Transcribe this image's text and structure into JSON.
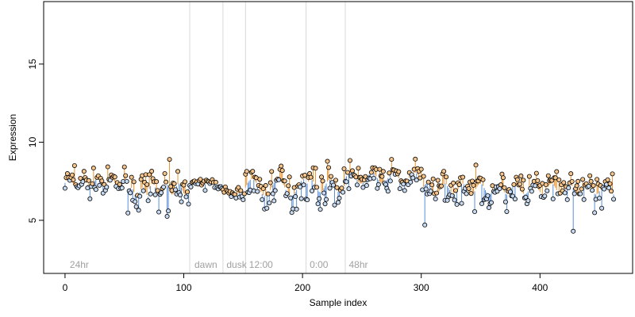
{
  "chart_data": {
    "type": "scatter",
    "title": "",
    "xlabel": "Sample index",
    "ylabel": "Expression",
    "xlim": [
      -18,
      478
    ],
    "ylim": [
      1.6,
      19.0
    ],
    "x_ticks": [
      0,
      100,
      200,
      300,
      400
    ],
    "y_ticks": [
      5,
      10,
      15
    ],
    "grid": false,
    "colors": {
      "point_fill_low": "#c6d9f0",
      "point_fill_high": "#f5c48a",
      "stem_low": "#5b8fd9",
      "stem_high": "#e8922e",
      "divider": "#d8d8d8",
      "segment_label": "#a0a0a0"
    },
    "segment_dividers": [
      105,
      133,
      152,
      203,
      236
    ],
    "segment_labels": [
      {
        "x": 2,
        "text": "24hr"
      },
      {
        "x": 107,
        "text": "dawn"
      },
      {
        "x": 134,
        "text": "dusk"
      },
      {
        "x": 153,
        "text": "12:00"
      },
      {
        "x": 204,
        "text": "0:00"
      },
      {
        "x": 237,
        "text": "48hr"
      }
    ],
    "outliers": [
      {
        "x": 8,
        "y": 8.5
      },
      {
        "x": 86,
        "y": 5.25
      },
      {
        "x": 87,
        "y": 5.6
      },
      {
        "x": 88,
        "y": 8.9
      },
      {
        "x": 303,
        "y": 4.7
      },
      {
        "x": 428,
        "y": 4.3
      }
    ],
    "series": [
      {
        "x_start": 0,
        "x_end": 52,
        "y_level": 7.4,
        "y_spread": 0.35,
        "trend_amp": 0.25,
        "trend_period": 12
      },
      {
        "x_start": 53,
        "x_end": 70,
        "y_level": 6.8,
        "y_spread": 0.45,
        "trend_amp": 0.3,
        "trend_period": 10
      },
      {
        "x_start": 71,
        "x_end": 104,
        "y_level": 7.0,
        "y_spread": 0.45,
        "trend_amp": 0.35,
        "trend_period": 11
      },
      {
        "x_start": 105,
        "x_end": 132,
        "y_level": 7.35,
        "y_spread": 0.15,
        "trend_amp": 0.1,
        "trend_period": 14
      },
      {
        "x_start": 133,
        "x_end": 151,
        "y_level": 6.65,
        "y_spread": 0.25,
        "trend_amp": 0.15,
        "trend_period": 12
      },
      {
        "x_start": 152,
        "x_end": 202,
        "y_level": 7.1,
        "y_spread": 0.55,
        "trend_amp": 0.55,
        "trend_period": 22
      },
      {
        "x_start": 203,
        "x_end": 235,
        "y_level": 7.2,
        "y_spread": 0.55,
        "trend_amp": 0.4,
        "trend_period": 16
      },
      {
        "x_start": 236,
        "x_end": 300,
        "y_level": 7.7,
        "y_spread": 0.4,
        "trend_amp": 0.35,
        "trend_period": 18
      },
      {
        "x_start": 301,
        "x_end": 462,
        "y_level": 7.0,
        "y_spread": 0.55,
        "trend_amp": 0.35,
        "trend_period": 15
      }
    ]
  }
}
